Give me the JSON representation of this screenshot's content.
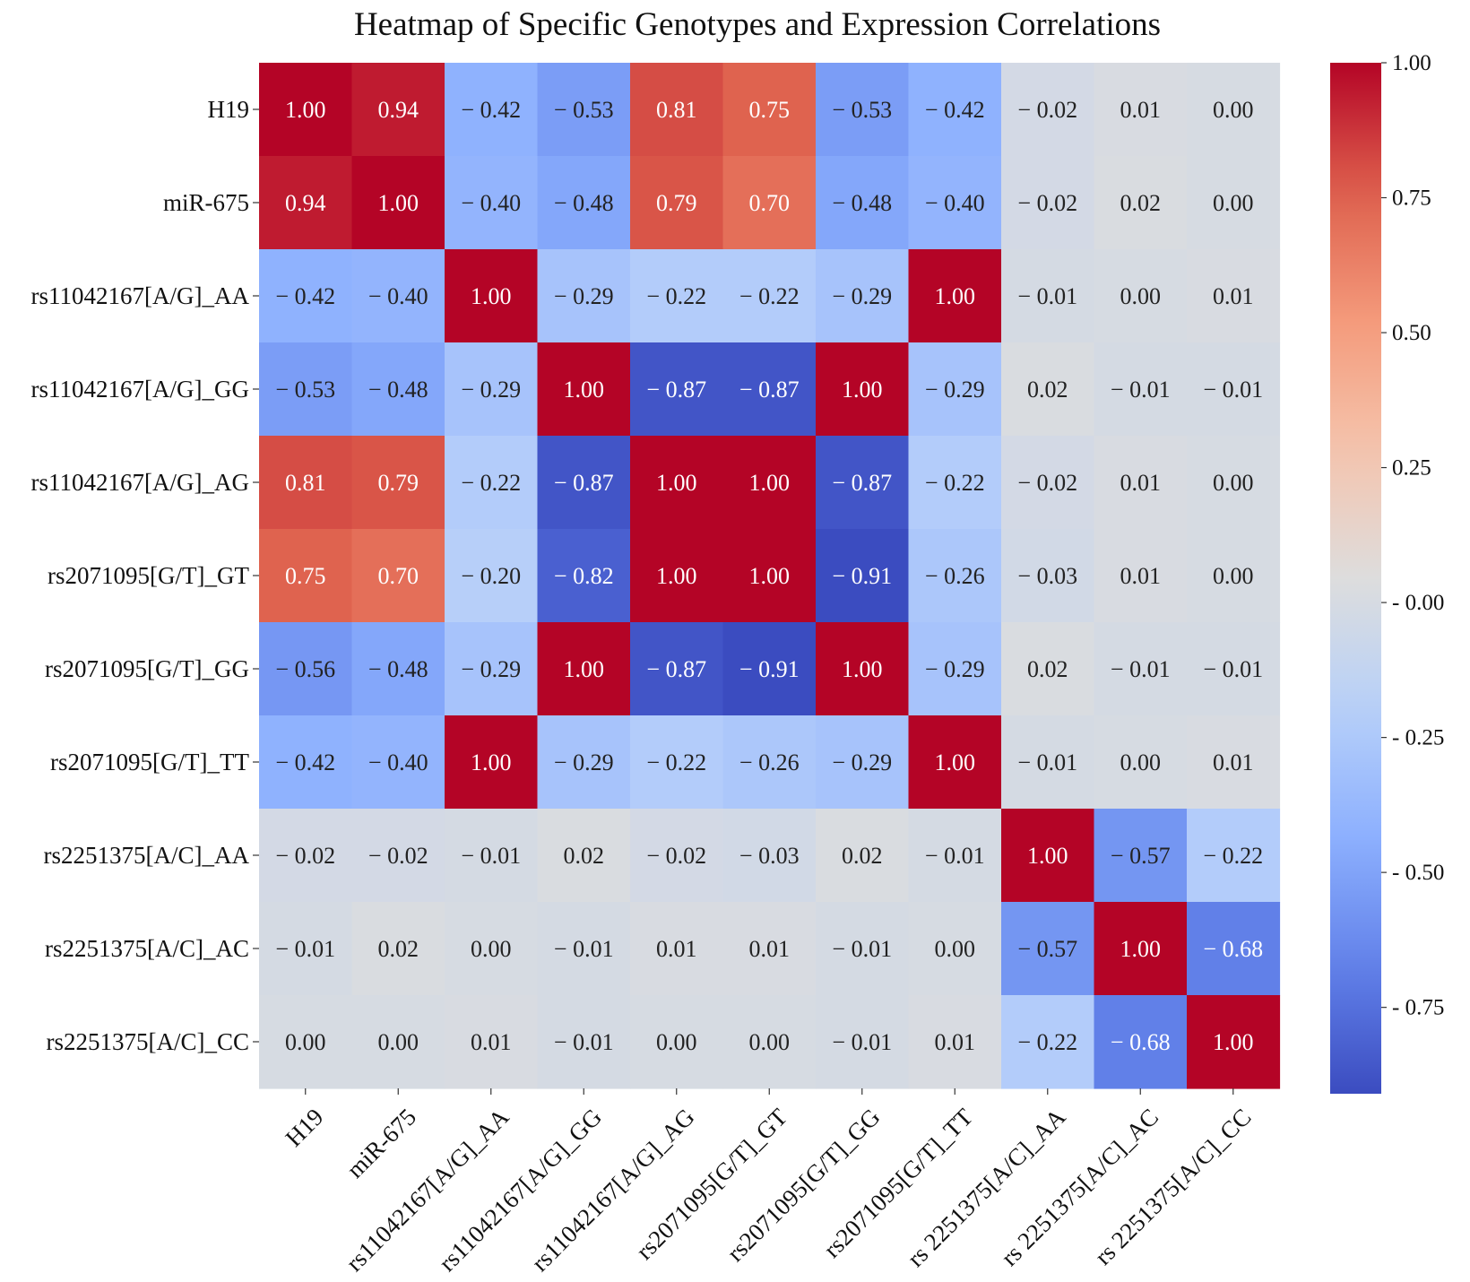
{
  "chart_data": {
    "type": "heatmap",
    "title": "Heatmap of Specific Genotypes and Expression Correlations",
    "row_labels": [
      "H19",
      "miR-675",
      "rs11042167[A/G]_AA",
      "rs11042167[A/G]_GG",
      "rs11042167[A/G]_AG",
      "rs2071095[G/T]_GT",
      "rs2071095[G/T]_GG",
      "rs2071095[G/T]_TT",
      "rs2251375[A/C]_AA",
      "rs2251375[A/C]_AC",
      "rs2251375[A/C]_CC"
    ],
    "col_labels": [
      "H19",
      "miR-675",
      "rs11042167[A/G]_AA",
      "rs11042167[A/G]_GG",
      "rs11042167[A/G]_AG",
      "rs2071095[G/T]_GT",
      "rs2071095[G/T]_GG",
      "rs2071095[G/T]_TT",
      "rs 2251375[A/C]_AA",
      "rs 2251375[A/C]_AC",
      "rs 2251375[A/C]_CC"
    ],
    "values": [
      [
        1.0,
        0.94,
        -0.42,
        -0.53,
        0.81,
        0.75,
        -0.53,
        -0.42,
        -0.02,
        0.01,
        0.0
      ],
      [
        0.94,
        1.0,
        -0.4,
        -0.48,
        0.79,
        0.7,
        -0.48,
        -0.4,
        -0.02,
        0.02,
        0.0
      ],
      [
        -0.42,
        -0.4,
        1.0,
        -0.29,
        -0.22,
        -0.22,
        -0.29,
        1.0,
        -0.01,
        0.0,
        0.01
      ],
      [
        -0.53,
        -0.48,
        -0.29,
        1.0,
        -0.87,
        -0.87,
        1.0,
        -0.29,
        0.02,
        -0.01,
        -0.01
      ],
      [
        0.81,
        0.79,
        -0.22,
        -0.87,
        1.0,
        1.0,
        -0.87,
        -0.22,
        -0.02,
        0.01,
        0.0
      ],
      [
        0.75,
        0.7,
        -0.2,
        -0.82,
        1.0,
        1.0,
        -0.91,
        -0.26,
        -0.03,
        0.01,
        0.0
      ],
      [
        -0.56,
        -0.48,
        -0.29,
        1.0,
        -0.87,
        -0.91,
        1.0,
        -0.29,
        0.02,
        -0.01,
        -0.01
      ],
      [
        -0.42,
        -0.4,
        1.0,
        -0.29,
        -0.22,
        -0.26,
        -0.29,
        1.0,
        -0.01,
        0.0,
        0.01
      ],
      [
        -0.02,
        -0.02,
        -0.01,
        0.02,
        -0.02,
        -0.03,
        0.02,
        -0.01,
        1.0,
        -0.57,
        -0.22
      ],
      [
        -0.01,
        0.02,
        0.0,
        -0.01,
        0.01,
        0.01,
        -0.01,
        0.0,
        -0.57,
        1.0,
        -0.68
      ],
      [
        0.0,
        0.0,
        0.01,
        -0.01,
        0.0,
        0.0,
        -0.01,
        0.01,
        -0.22,
        -0.68,
        1.0
      ]
    ],
    "colorbar": {
      "colormap": "coolwarm",
      "vmin": -0.91,
      "vmax": 1.0,
      "ticks": [
        1.0,
        0.75,
        0.5,
        0.25,
        0.0,
        -0.25,
        -0.5,
        -0.75
      ],
      "tick_labels": [
        "1.00",
        "0.75",
        "0.50",
        "0.25",
        "- 0.00",
        "- 0.25",
        "- 0.50",
        "- 0.75"
      ]
    },
    "grid": false,
    "legend": "right"
  }
}
